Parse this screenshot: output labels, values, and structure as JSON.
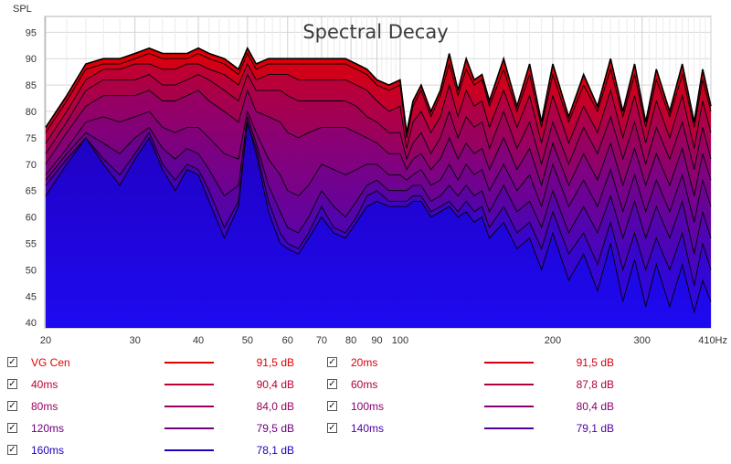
{
  "chart_data": {
    "type": "area",
    "title": "Spectral Decay",
    "ylabel": "SPL",
    "xunit_suffix": "Hz",
    "x_scale": "log",
    "xlim": [
      20,
      410
    ],
    "ylim": [
      39,
      98
    ],
    "x_ticks": [
      20,
      30,
      40,
      50,
      60,
      70,
      80,
      90,
      100,
      200,
      300,
      410
    ],
    "x_tick_labels": [
      "20",
      "30",
      "40",
      "50",
      "60",
      "70",
      "80",
      "90",
      "100",
      "200",
      "300",
      "410Hz"
    ],
    "y_ticks": [
      40,
      45,
      50,
      55,
      60,
      65,
      70,
      75,
      80,
      85,
      90,
      95
    ],
    "grid": true,
    "legend_position": "bottom",
    "x": [
      20,
      22,
      24,
      26,
      28,
      30,
      32,
      34,
      36,
      38,
      40,
      42,
      45,
      48,
      50,
      52,
      55,
      58,
      60,
      63,
      66,
      70,
      74,
      78,
      82,
      86,
      90,
      95,
      100,
      103,
      106,
      110,
      115,
      120,
      125,
      130,
      135,
      140,
      145,
      150,
      160,
      170,
      180,
      190,
      200,
      215,
      230,
      245,
      260,
      275,
      290,
      305,
      320,
      340,
      360,
      380,
      395,
      410
    ],
    "series": [
      {
        "name": "VG Cen",
        "legend_value": "91,5 dB",
        "color": "#e00000",
        "values": [
          77,
          83,
          89,
          90,
          90,
          91,
          92,
          91,
          91,
          91,
          92,
          91,
          90,
          88,
          92,
          89,
          90,
          90,
          90,
          90,
          90,
          90,
          90,
          90,
          89,
          88,
          86,
          85,
          86,
          76,
          82,
          85,
          80,
          84,
          91,
          84,
          90,
          86,
          87,
          82,
          90,
          81,
          89,
          78,
          89,
          79,
          87,
          81,
          90,
          80,
          89,
          78,
          88,
          80,
          89,
          78,
          88,
          81
        ]
      },
      {
        "name": "20ms",
        "legend_value": "91,5 dB",
        "color": "#d80010",
        "values": [
          76,
          82,
          88,
          89,
          89,
          90,
          91,
          90,
          90,
          90,
          91,
          90,
          89,
          87,
          91,
          88,
          89,
          89,
          89,
          89,
          89,
          89,
          89,
          89,
          88,
          87,
          85,
          84,
          85,
          75,
          81,
          84,
          79,
          83,
          89,
          83,
          88,
          85,
          86,
          81,
          88,
          80,
          87,
          77,
          87,
          78,
          85,
          80,
          88,
          79,
          87,
          77,
          86,
          79,
          87,
          77,
          86,
          80
        ]
      },
      {
        "name": "40ms",
        "legend_value": "90,4 dB",
        "color": "#c00030",
        "values": [
          74,
          80,
          86,
          88,
          88,
          89,
          89,
          88,
          88,
          89,
          89,
          88,
          87,
          85,
          89,
          86,
          87,
          87,
          87,
          86,
          86,
          86,
          86,
          86,
          85,
          84,
          82,
          80,
          81,
          73,
          78,
          80,
          76,
          79,
          85,
          79,
          84,
          81,
          82,
          77,
          84,
          77,
          83,
          74,
          83,
          74,
          81,
          76,
          84,
          75,
          83,
          74,
          82,
          75,
          83,
          73,
          82,
          76
        ]
      },
      {
        "name": "60ms",
        "legend_value": "87,8 dB",
        "color": "#b00040",
        "values": [
          72,
          78,
          84,
          86,
          86,
          86,
          87,
          85,
          85,
          86,
          87,
          86,
          84,
          82,
          87,
          84,
          84,
          84,
          83,
          82,
          82,
          82,
          82,
          82,
          81,
          79,
          78,
          76,
          76,
          71,
          74,
          76,
          72,
          75,
          80,
          75,
          79,
          77,
          78,
          73,
          80,
          73,
          78,
          70,
          78,
          70,
          77,
          72,
          79,
          71,
          78,
          70,
          77,
          71,
          78,
          69,
          77,
          71
        ]
      },
      {
        "name": "80ms",
        "legend_value": "84,0 dB",
        "color": "#9a0060",
        "values": [
          70,
          76,
          81,
          83,
          83,
          83,
          84,
          82,
          82,
          83,
          84,
          82,
          80,
          78,
          84,
          80,
          79,
          78,
          76,
          75,
          76,
          77,
          77,
          77,
          76,
          75,
          74,
          72,
          72,
          69,
          71,
          72,
          69,
          71,
          75,
          71,
          74,
          72,
          73,
          69,
          75,
          69,
          73,
          66,
          74,
          66,
          72,
          67,
          74,
          66,
          73,
          66,
          72,
          66,
          73,
          64,
          72,
          67
        ]
      },
      {
        "name": "100ms",
        "legend_value": "80,4 dB",
        "color": "#880070",
        "values": [
          68,
          73,
          78,
          79,
          78,
          79,
          80,
          77,
          76,
          77,
          77,
          75,
          72,
          71,
          80,
          76,
          71,
          68,
          65,
          64,
          66,
          70,
          69,
          68,
          69,
          70,
          70,
          68,
          68,
          67,
          68,
          69,
          66,
          67,
          70,
          67,
          70,
          68,
          69,
          65,
          70,
          65,
          68,
          62,
          70,
          62,
          67,
          62,
          69,
          61,
          68,
          61,
          67,
          61,
          68,
          59,
          67,
          62
        ]
      },
      {
        "name": "120ms",
        "legend_value": "79,5 dB",
        "color": "#700080",
        "values": [
          67,
          72,
          76,
          74,
          72,
          75,
          77,
          73,
          71,
          73,
          72,
          69,
          64,
          66,
          79,
          74,
          66,
          61,
          58,
          57,
          60,
          65,
          62,
          60,
          63,
          66,
          67,
          65,
          65,
          65,
          66,
          66,
          63,
          64,
          66,
          64,
          66,
          64,
          65,
          61,
          66,
          61,
          63,
          58,
          65,
          57,
          62,
          57,
          64,
          56,
          63,
          56,
          62,
          56,
          63,
          53,
          61,
          56
        ]
      },
      {
        "name": "140ms",
        "legend_value": "79,1 dB",
        "color": "#5000a0",
        "values": [
          66,
          71,
          75,
          71,
          68,
          72,
          76,
          70,
          67,
          70,
          69,
          65,
          58,
          63,
          78,
          73,
          63,
          57,
          55,
          54,
          57,
          62,
          58,
          57,
          60,
          64,
          65,
          63,
          63,
          63,
          64,
          64,
          61,
          62,
          63,
          61,
          63,
          61,
          62,
          58,
          62,
          57,
          59,
          54,
          61,
          53,
          57,
          51,
          59,
          50,
          57,
          50,
          56,
          50,
          57,
          47,
          55,
          50
        ]
      },
      {
        "name": "160ms",
        "legend_value": "78,1 dB",
        "color": "#2000c0",
        "values": [
          64,
          70,
          75,
          70,
          66,
          71,
          75,
          69,
          65,
          69,
          68,
          63,
          56,
          62,
          78,
          72,
          61,
          55,
          54,
          53,
          56,
          60,
          57,
          56,
          59,
          62,
          63,
          62,
          62,
          62,
          63,
          63,
          60,
          61,
          62,
          60,
          61,
          59,
          60,
          56,
          59,
          54,
          56,
          50,
          57,
          48,
          53,
          46,
          55,
          44,
          52,
          43,
          51,
          43,
          51,
          42,
          48,
          44
        ]
      }
    ]
  },
  "legend_colors": {
    "text": [
      "#d01010",
      "#c0103a",
      "#a80055",
      "#8c0070",
      "#600090",
      "#3010c0"
    ]
  }
}
